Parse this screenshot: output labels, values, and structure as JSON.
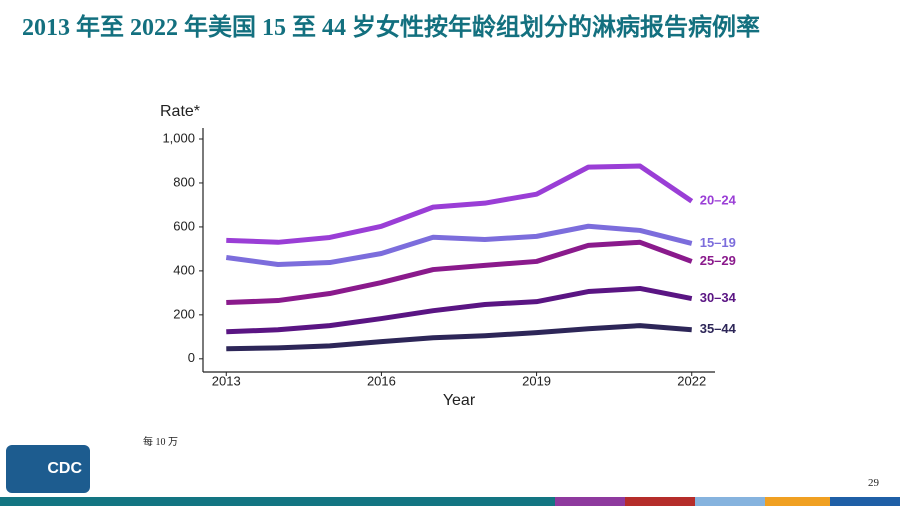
{
  "title": "2013 年至 2022 年美国 15 至 44 岁女性按年龄组划分的淋病报告病例率",
  "footnote": "每 10 万",
  "logo": "CDC",
  "page_number": "29",
  "chart_data": {
    "type": "line",
    "y_label": "Rate*",
    "x_label": "Year",
    "x": [
      2013,
      2014,
      2015,
      2016,
      2017,
      2018,
      2019,
      2020,
      2021,
      2022
    ],
    "xlim": [
      2012.55,
      2022.45
    ],
    "xticks": [
      2013,
      2016,
      2019,
      2022
    ],
    "ylim": [
      -60,
      1050
    ],
    "yticks": [
      0,
      200,
      400,
      600,
      800,
      {
        "value": 1000,
        "label": "1,000"
      }
    ],
    "series": [
      {
        "name": "20–24",
        "color": "#9a3ed6",
        "values": [
          539,
          530,
          552,
          603,
          690,
          708,
          749,
          872,
          877,
          717
        ]
      },
      {
        "name": "15–19",
        "color": "#7c6ddc",
        "values": [
          461,
          429,
          438,
          479,
          553,
          543,
          557,
          603,
          584,
          525
        ]
      },
      {
        "name": "25–29",
        "color": "#8a1a8c",
        "values": [
          256,
          265,
          297,
          347,
          406,
          425,
          443,
          516,
          530,
          443
        ]
      },
      {
        "name": "30–34",
        "color": "#5a1583",
        "values": [
          123,
          132,
          151,
          183,
          219,
          247,
          260,
          306,
          320,
          274
        ]
      },
      {
        "name": "35–44",
        "color": "#2d2658",
        "values": [
          46,
          50,
          59,
          78,
          96,
          105,
          119,
          137,
          151,
          132
        ]
      }
    ]
  }
}
